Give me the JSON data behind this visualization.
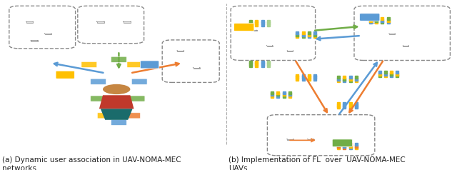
{
  "caption_a": "(a) Dynamic user association in UAV-NOMA-MEC\nnetworks.",
  "caption_b": "(b) Implementation of FL  over  UAV-NOMA-MEC\nUAVs.",
  "fig_width": 6.4,
  "fig_height": 2.38,
  "dpi": 100,
  "background": "#ffffff",
  "caption_fontsize": 7.5
}
